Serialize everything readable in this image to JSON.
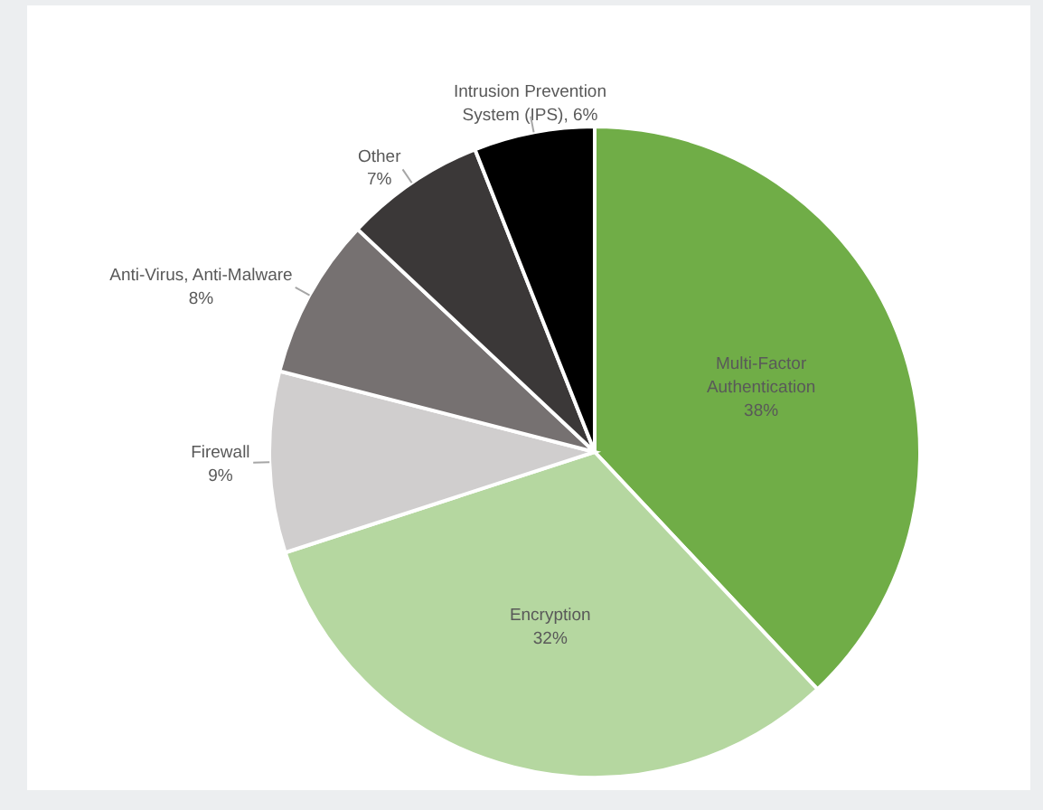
{
  "chart_data": {
    "type": "pie",
    "categories": [
      "Multi-Factor Authentication",
      "Encryption",
      "Firewall",
      "Anti-Virus, Anti-Malware",
      "Other",
      "Intrusion Prevention System (IPS)"
    ],
    "values": [
      38,
      32,
      9,
      8,
      7,
      6
    ],
    "value_labels": [
      "38%",
      "32%",
      "9%",
      "8%",
      "7%",
      "6%"
    ],
    "colors": [
      "#70ad47",
      "#b5d7a0",
      "#d0cece",
      "#767171",
      "#3b3838",
      "#000000"
    ]
  }
}
